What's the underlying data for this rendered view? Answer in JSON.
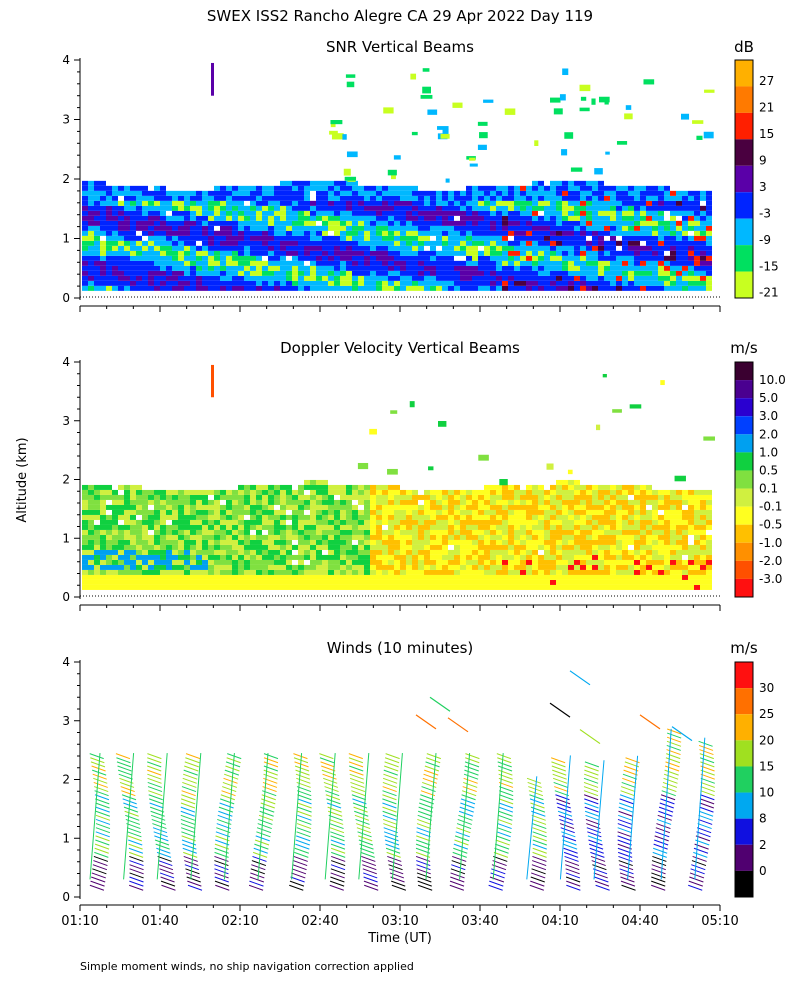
{
  "figure": {
    "title": "SWEX ISS2 Rancho Alegre CA  29 Apr 2022 Day 119",
    "ylabel": "Altitude (km)",
    "xlabel": "Time (UT)",
    "footnote": "Simple moment winds, no ship navigation correction applied",
    "x_ticks": [
      "01:10",
      "01:40",
      "02:10",
      "02:40",
      "03:10",
      "03:40",
      "04:10",
      "04:40",
      "05:10"
    ]
  },
  "chart_data": [
    {
      "type": "heatmap",
      "title": "SNR Vertical Beams",
      "xlabel": "Time (UT)",
      "ylabel": "Altitude (km)",
      "ylim": [
        0,
        4
      ],
      "y_ticks": [
        0,
        1,
        2,
        3,
        4
      ],
      "x_ticks": [
        "01:10",
        "01:40",
        "02:10",
        "02:40",
        "03:10",
        "03:40",
        "04:10",
        "04:40",
        "05:10"
      ],
      "colorbar": {
        "unit": "dB",
        "labels": [
          "27",
          "21",
          "15",
          "9",
          "3",
          "-3",
          "-9",
          "-15",
          "-21"
        ],
        "colors": [
          "#ffb000",
          "#ff7a00",
          "#ff1f00",
          "#4a0040",
          "#5a00a8",
          "#0024ff",
          "#00b8ff",
          "#00e060",
          "#c8ff20"
        ]
      }
    },
    {
      "type": "heatmap",
      "title": "Doppler Velocity Vertical Beams",
      "xlabel": "Time (UT)",
      "ylabel": "Altitude (km)",
      "ylim": [
        0,
        4
      ],
      "y_ticks": [
        0,
        1,
        2,
        3,
        4
      ],
      "x_ticks": [
        "01:10",
        "01:40",
        "02:10",
        "02:40",
        "03:10",
        "03:40",
        "04:10",
        "04:40",
        "05:10"
      ],
      "colorbar": {
        "unit": "m/s",
        "labels": [
          "10.0",
          "5.0",
          "3.0",
          "2.0",
          "1.0",
          "0.5",
          "0.1",
          "-0.1",
          "-0.5",
          "-1.0",
          "-2.0",
          "-3.0"
        ],
        "colors": [
          "#3a0030",
          "#4a0090",
          "#2a00d0",
          "#0040ff",
          "#00a0f0",
          "#10d040",
          "#80e040",
          "#d0f040",
          "#ffff20",
          "#ffc000",
          "#ff9000",
          "#ff5000",
          "#ff1010"
        ]
      }
    },
    {
      "type": "scatter",
      "title": "Winds (10 minutes)",
      "xlabel": "Time (UT)",
      "ylabel": "Altitude (km)",
      "ylim": [
        0,
        4
      ],
      "y_ticks": [
        0,
        1,
        2,
        3,
        4
      ],
      "x_ticks": [
        "01:10",
        "01:40",
        "02:10",
        "02:40",
        "03:10",
        "03:40",
        "04:10",
        "04:40",
        "05:10"
      ],
      "colorbar": {
        "unit": "m/s",
        "labels": [
          "30",
          "25",
          "20",
          "15",
          "10",
          "8",
          "2",
          "0"
        ],
        "colors": [
          "#ff1010",
          "#ff7000",
          "#ffb000",
          "#a0e020",
          "#20d060",
          "#00a8f0",
          "#1010e0",
          "#500070",
          "#000000"
        ]
      }
    }
  ]
}
